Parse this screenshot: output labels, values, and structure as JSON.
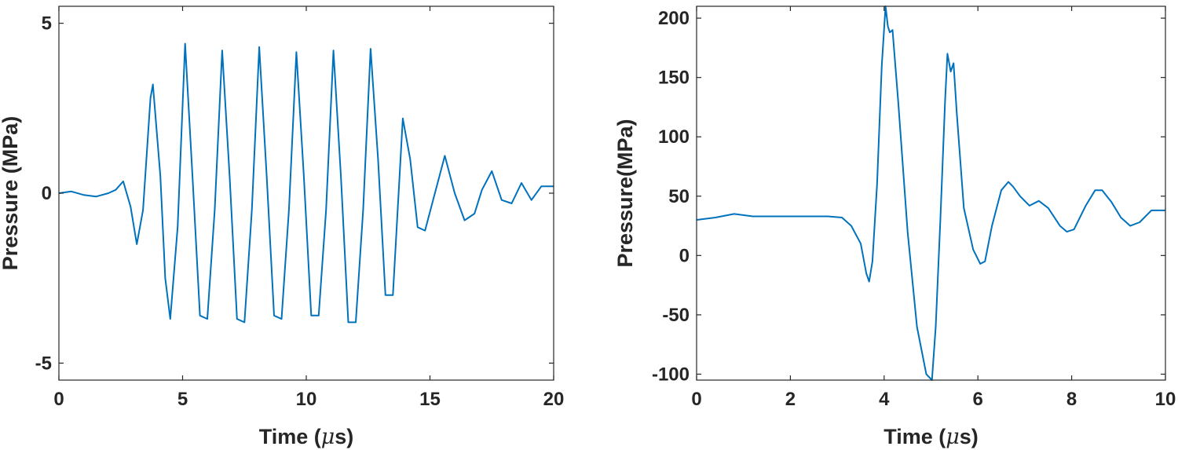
{
  "chart_data": [
    {
      "type": "line",
      "title": "",
      "xlabel": "Time (",
      "xlabel_mu": "μ",
      "xlabel_tail": "s)",
      "ylabel": "Pressure (MPa)",
      "xlim": [
        0,
        20
      ],
      "ylim": [
        -5.5,
        5.5
      ],
      "xticks": [
        "0",
        "5",
        "10",
        "15",
        "20"
      ],
      "yticks": [
        "-5",
        "0",
        "5"
      ],
      "grid": false,
      "color": "#0072BD",
      "series": [
        {
          "x": [
            0,
            0.5,
            1,
            1.5,
            2,
            2.3,
            2.6,
            2.9,
            3.15,
            3.4,
            3.7,
            3.8,
            4.1,
            4.3,
            4.5,
            4.8,
            5.1,
            5.4,
            5.7,
            6.0,
            6.3,
            6.6,
            6.9,
            7.2,
            7.5,
            7.8,
            8.1,
            8.4,
            8.7,
            9.0,
            9.3,
            9.6,
            9.9,
            10.2,
            10.5,
            10.8,
            11.1,
            11.4,
            11.7,
            12.0,
            12.3,
            12.6,
            12.9,
            13.2,
            13.5,
            13.9,
            14.2,
            14.5,
            14.8,
            15.2,
            15.6,
            16.0,
            16.4,
            16.8,
            17.1,
            17.5,
            17.9,
            18.3,
            18.7,
            19.1,
            19.5,
            20
          ],
          "y": [
            0.0,
            0.05,
            -0.05,
            -0.1,
            0.0,
            0.1,
            0.35,
            -0.4,
            -1.5,
            -0.5,
            2.8,
            3.2,
            0.5,
            -2.5,
            -3.7,
            -1.0,
            4.4,
            0.5,
            -3.6,
            -3.7,
            -0.5,
            4.2,
            0.5,
            -3.7,
            -3.8,
            -0.5,
            4.3,
            0.5,
            -3.6,
            -3.7,
            -0.5,
            4.15,
            0.5,
            -3.6,
            -3.6,
            -0.5,
            4.2,
            0.5,
            -3.8,
            -3.8,
            -0.5,
            4.25,
            1.0,
            -3.0,
            -3.0,
            2.2,
            1.0,
            -1.0,
            -1.1,
            0.0,
            1.1,
            0.0,
            -0.8,
            -0.6,
            0.1,
            0.65,
            -0.2,
            -0.3,
            0.3,
            -0.2,
            0.2,
            0.2
          ]
        }
      ]
    },
    {
      "type": "line",
      "title": "",
      "xlabel": "Time (",
      "xlabel_mu": "μ",
      "xlabel_tail": "s)",
      "ylabel": "Pressure(MPa)",
      "xlim": [
        0,
        10
      ],
      "ylim": [
        -105,
        210
      ],
      "xticks": [
        "0",
        "2",
        "4",
        "6",
        "8",
        "10"
      ],
      "yticks": [
        "-100",
        "-50",
        "0",
        "50",
        "100",
        "150",
        "200"
      ],
      "grid": false,
      "color": "#0072BD",
      "series": [
        {
          "x": [
            0,
            0.4,
            0.8,
            1.2,
            1.6,
            2.0,
            2.4,
            2.8,
            3.1,
            3.3,
            3.5,
            3.62,
            3.68,
            3.75,
            3.85,
            3.95,
            4.03,
            4.08,
            4.12,
            4.18,
            4.3,
            4.5,
            4.7,
            4.9,
            5.02,
            5.1,
            5.2,
            5.3,
            5.35,
            5.42,
            5.48,
            5.55,
            5.7,
            5.9,
            6.05,
            6.15,
            6.3,
            6.5,
            6.65,
            6.75,
            6.9,
            7.1,
            7.3,
            7.5,
            7.75,
            7.9,
            8.05,
            8.3,
            8.5,
            8.65,
            8.85,
            9.05,
            9.25,
            9.45,
            9.7,
            10
          ],
          "y": [
            30,
            32,
            35,
            33,
            33,
            33,
            33,
            33,
            32,
            25,
            10,
            -15,
            -22,
            -5,
            60,
            160,
            210,
            193,
            188,
            190,
            130,
            20,
            -60,
            -100,
            -105,
            -60,
            30,
            130,
            170,
            155,
            162,
            120,
            40,
            5,
            -7,
            -5,
            25,
            55,
            62,
            58,
            50,
            42,
            46,
            40,
            25,
            20,
            22,
            42,
            55,
            55,
            45,
            32,
            25,
            28,
            38,
            38
          ]
        }
      ]
    }
  ]
}
